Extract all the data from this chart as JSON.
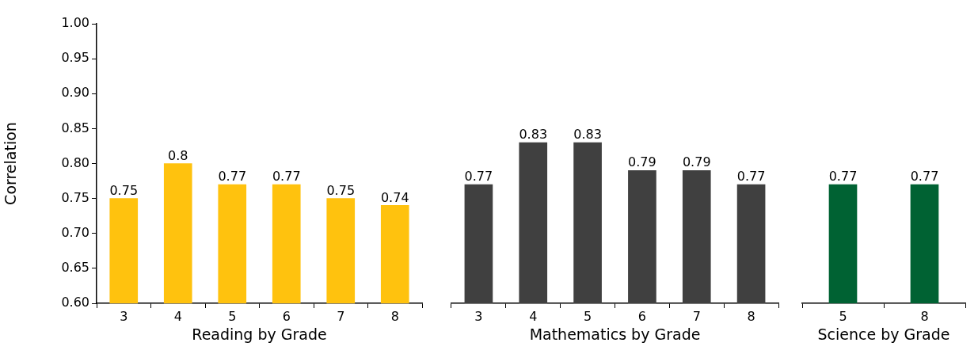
{
  "chart_data": [
    {
      "type": "bar",
      "xlabel": "Reading by Grade",
      "ylabel": "Correlation",
      "categories": [
        "3",
        "4",
        "5",
        "6",
        "7",
        "8"
      ],
      "values": [
        0.75,
        0.8,
        0.77,
        0.77,
        0.75,
        0.74
      ],
      "color": "#ffc20e",
      "data_labels": true,
      "ylim": [
        0.6,
        1.0
      ],
      "yticks": [
        {
          "value": 0.6,
          "label": "0.60"
        },
        {
          "value": 0.65,
          "label": "0.65"
        },
        {
          "value": 0.7,
          "label": "0.70"
        },
        {
          "value": 0.75,
          "label": "0.75"
        },
        {
          "value": 0.8,
          "label": "0.80"
        },
        {
          "value": 0.85,
          "label": "0.85"
        },
        {
          "value": 0.9,
          "label": "0.90"
        },
        {
          "value": 0.95,
          "label": "0.95"
        },
        {
          "value": 1.0,
          "label": "1.00"
        }
      ],
      "grid": false,
      "legend": false
    },
    {
      "type": "bar",
      "xlabel": "Mathematics by Grade",
      "categories": [
        "3",
        "4",
        "5",
        "6",
        "7",
        "8"
      ],
      "values": [
        0.77,
        0.83,
        0.83,
        0.79,
        0.79,
        0.77
      ],
      "color": "#404040",
      "data_labels": true,
      "ylim": [
        0.6,
        1.0
      ],
      "tick_labels": "x",
      "grid": false,
      "legend": false
    },
    {
      "type": "bar",
      "xlabel": "Science by Grade",
      "categories": [
        "5",
        "8"
      ],
      "values": [
        0.77,
        0.77
      ],
      "color": "#006233",
      "data_labels": true,
      "ylim": [
        0.6,
        1.0
      ],
      "tick_labels": "x",
      "grid": false,
      "legend": false
    }
  ]
}
